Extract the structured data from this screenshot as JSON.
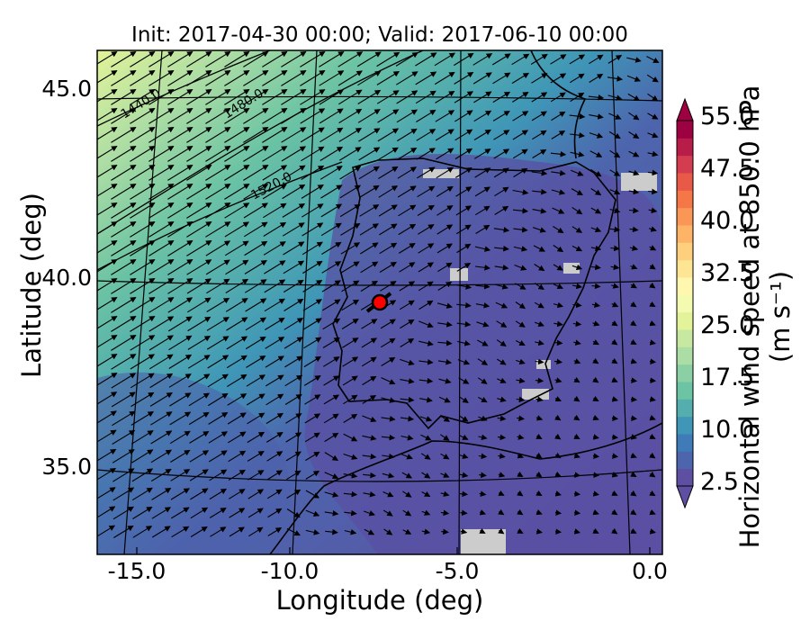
{
  "map": {
    "title": "Init: 2017-04-30 00:00; Valid: 2017-06-10 00:00",
    "xlabel": "Longitude (deg)",
    "ylabel": "Latitude (deg)",
    "x_ticks": [
      "-15.0",
      "-10.0",
      "-5.0",
      "0.0"
    ],
    "y_ticks": [
      "45.0",
      "40.0",
      "35.0"
    ],
    "contour_labels": [
      "1440.0",
      "1480.0",
      "1520.0"
    ],
    "site_marker": {
      "lat": 39.3,
      "lon": -7.7,
      "color": "#ff0000"
    },
    "lon_range": [
      -16,
      0.3
    ],
    "lat_range": [
      33,
      46
    ]
  },
  "colorbar": {
    "label": "Horizontal wind speed at 850.0 hPa (m s⁻¹)",
    "tick_labels": [
      "55.0",
      "47.5",
      "40.0",
      "32.5",
      "25.0",
      "17.5",
      "10.0",
      "2.5"
    ],
    "range": [
      2.5,
      55.0
    ],
    "colors": [
      "#5e4fa2",
      "#4d65ad",
      "#3e7bb8",
      "#3f96b7",
      "#54aead",
      "#6cc4a4",
      "#8bd0a4",
      "#abdda4",
      "#c7e8a0",
      "#e2f399",
      "#f4fab0",
      "#fff7b0",
      "#fee593",
      "#fed07e",
      "#fdb466",
      "#fa9656",
      "#f57748",
      "#e85a47",
      "#d43d4f",
      "#b81c49",
      "#9e0142"
    ]
  }
}
